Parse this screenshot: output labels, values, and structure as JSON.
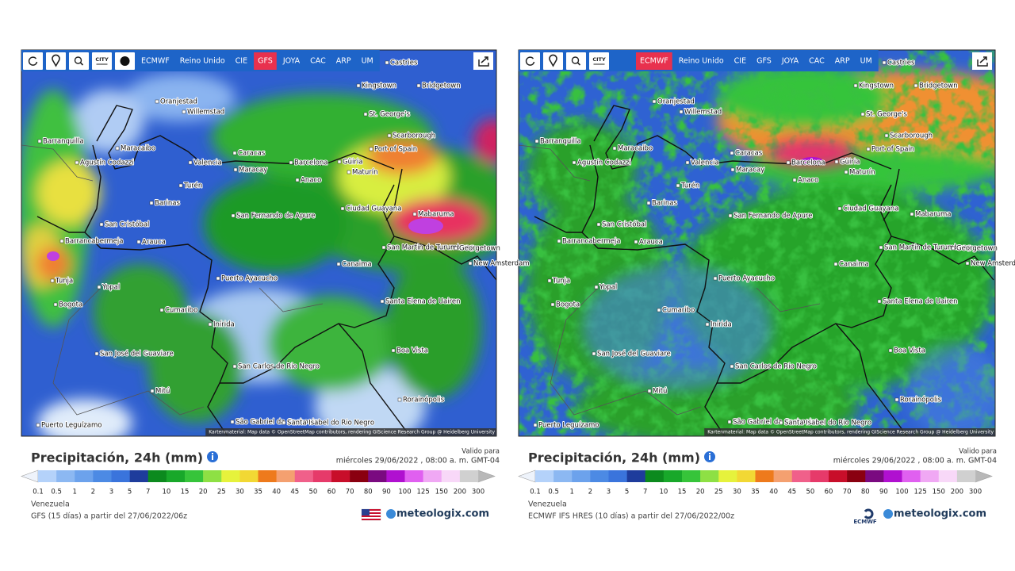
{
  "panels": [
    {
      "toolbar": {
        "icon_label": "CITY",
        "models": [
          "ECMWF",
          "Reino Unido",
          "CIE",
          "GFS",
          "JOYA",
          "CAC",
          "ARP",
          "UM"
        ],
        "active": "GFS"
      },
      "attribution": "Kartenmaterial: Map data © OpenStreetMap contributors, rendering GIScience Research Group @ Heidelberg University",
      "title": "Precipitación, 24h (mm)",
      "valid_label": "Valido para",
      "valid_time": "miércoles 29/06/2022 , 08:00 a. m. GMT-04",
      "region": "Venezuela",
      "model_run": "GFS (15 días) a partir del 27/06/2022/06z",
      "logo": "meteologix.com"
    },
    {
      "toolbar": {
        "icon_label": "CITY",
        "models": [
          "ECMWF",
          "Reino Unido",
          "CIE",
          "GFS",
          "JOYA",
          "CAC",
          "ARP",
          "UM"
        ],
        "active": "ECMWF"
      },
      "attribution": "Kartenmaterial: Map data © OpenStreetMap contributors, rendering GIScience Research Group @ Heidelberg University",
      "title": "Precipitación, 24h (mm)",
      "valid_label": "Valido para",
      "valid_time": "miércoles 29/06/2022 , 08:00 a. m. GMT-04",
      "region": "Venezuela",
      "model_run": "ECMWF IFS HRES (10 días) a partir del 27/06/2022/00z",
      "provider": "ECMWF",
      "logo": "meteologix.com"
    }
  ],
  "cities": [
    "Castries",
    "Kingstown",
    "Bridgetown",
    "Oranjestad",
    "Willemstad",
    "St. George's",
    "Scarborough",
    "Port of Spain",
    "Barranquilla",
    "Maracaibo",
    "Caracas",
    "Valencia",
    "Maracay",
    "Barcelona",
    "Güiria",
    "Maturín",
    "Agustín Codazzi",
    "Anaco",
    "Turén",
    "Barinas",
    "Ciudad Guayana",
    "Mabaruma",
    "San Cristóbal",
    "San Fernando de Apure",
    "Barrancabermeja",
    "Arauca",
    "San Martin de Turumbang",
    "Georgetown",
    "Canaima",
    "New Amsterdam",
    "Tunja",
    "Yopal",
    "Puerto Ayacucho",
    "Bogota",
    "Cumaribo",
    "Santa Elena de Uairen",
    "Inírida",
    "Boa Vista",
    "San José del Guaviare",
    "San Carlos de Rio Negro",
    "Mitú",
    "Rorainópolis",
    "São Gabriel da Cachoeira",
    "Santa Isabel do Rio Negro",
    "Puerto Leguízamo"
  ],
  "scale": {
    "labels": [
      "0.1",
      "0.5",
      "1",
      "2",
      "3",
      "5",
      "7",
      "10",
      "15",
      "20",
      "25",
      "30",
      "35",
      "40",
      "45",
      "50",
      "60",
      "70",
      "80",
      "90",
      "100",
      "125",
      "150",
      "200",
      "300"
    ],
    "colors": [
      "#b4d2fa",
      "#8cb8f2",
      "#6ca2ec",
      "#4c8ae4",
      "#3a74dc",
      "#1e3c9c",
      "#0c8a1e",
      "#18a82a",
      "#36c43a",
      "#8ee044",
      "#e6f23c",
      "#f2d834",
      "#ee7a1c",
      "#f4a070",
      "#f0608a",
      "#e63a6a",
      "#c80e2a",
      "#8a0010",
      "#7a0a80",
      "#b010d0",
      "#e060f0",
      "#f0a8f4",
      "#f8d8f8",
      "#d0d0d0"
    ]
  }
}
